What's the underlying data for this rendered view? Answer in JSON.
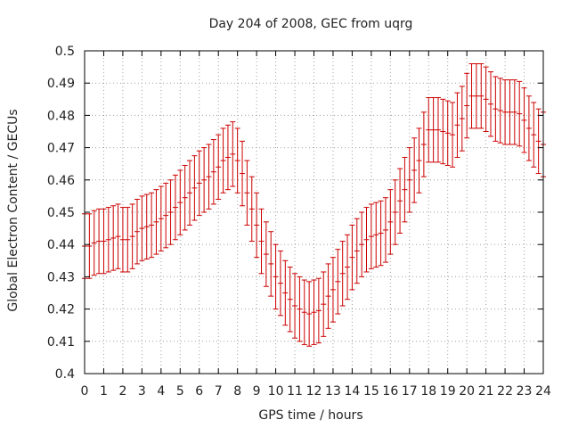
{
  "chart_data": {
    "type": "scatter",
    "title": "Day 204 of 2008, GEC from uqrg",
    "xlabel": "GPS time / hours",
    "ylabel": "Global Electron Content / GECUs",
    "xlim": [
      0,
      24
    ],
    "ylim": [
      0.4,
      0.5
    ],
    "grid": true,
    "error_bars": true,
    "series_color": "#cc0000",
    "grid_color": "#a0a0a0",
    "xticks": [
      "0",
      "1",
      "2",
      "3",
      "4",
      "5",
      "6",
      "7",
      "8",
      "9",
      "10",
      "11",
      "12",
      "13",
      "14",
      "15",
      "16",
      "17",
      "18",
      "19",
      "20",
      "21",
      "22",
      "23",
      "24"
    ],
    "yticks": [
      "0.4",
      "0.41",
      "0.42",
      "0.43",
      "0.44",
      "0.45",
      "0.46",
      "0.47",
      "0.48",
      "0.49",
      "0.5"
    ],
    "x": [
      0,
      0.25,
      0.5,
      0.75,
      1,
      1.25,
      1.5,
      1.75,
      2,
      2.25,
      2.5,
      2.75,
      3,
      3.25,
      3.5,
      3.75,
      4,
      4.25,
      4.5,
      4.75,
      5,
      5.25,
      5.5,
      5.75,
      6,
      6.25,
      6.5,
      6.75,
      7,
      7.25,
      7.5,
      7.75,
      8,
      8.25,
      8.5,
      8.75,
      9,
      9.25,
      9.5,
      9.75,
      10,
      10.25,
      10.5,
      10.75,
      11,
      11.25,
      11.5,
      11.75,
      12,
      12.25,
      12.5,
      12.75,
      13,
      13.25,
      13.5,
      13.75,
      14,
      14.25,
      14.5,
      14.75,
      15,
      15.25,
      15.5,
      15.75,
      16,
      16.25,
      16.5,
      16.75,
      17,
      17.25,
      17.5,
      17.75,
      18,
      18.25,
      18.5,
      18.75,
      19,
      19.25,
      19.5,
      19.75,
      20,
      20.25,
      20.5,
      20.75,
      21,
      21.25,
      21.5,
      21.75,
      22,
      22.25,
      22.5,
      22.75,
      23,
      23.25,
      23.5,
      23.75,
      24
    ],
    "y": [
      0.4395,
      0.4395,
      0.4405,
      0.441,
      0.441,
      0.4415,
      0.442,
      0.4425,
      0.4415,
      0.4415,
      0.4425,
      0.444,
      0.445,
      0.4455,
      0.446,
      0.447,
      0.448,
      0.449,
      0.45,
      0.4515,
      0.453,
      0.4545,
      0.456,
      0.4575,
      0.459,
      0.46,
      0.461,
      0.4625,
      0.464,
      0.466,
      0.467,
      0.468,
      0.466,
      0.462,
      0.456,
      0.451,
      0.446,
      0.441,
      0.437,
      0.434,
      0.43,
      0.428,
      0.425,
      0.423,
      0.421,
      0.42,
      0.419,
      0.4185,
      0.419,
      0.4195,
      0.4215,
      0.424,
      0.426,
      0.4285,
      0.431,
      0.433,
      0.436,
      0.438,
      0.44,
      0.4415,
      0.4425,
      0.443,
      0.4435,
      0.4445,
      0.447,
      0.45,
      0.4535,
      0.457,
      0.46,
      0.463,
      0.466,
      0.471,
      0.4755,
      0.4755,
      0.4755,
      0.475,
      0.4745,
      0.474,
      0.477,
      0.479,
      0.483,
      0.486,
      0.486,
      0.486,
      0.485,
      0.4835,
      0.482,
      0.4815,
      0.481,
      0.481,
      0.481,
      0.4805,
      0.4785,
      0.476,
      0.474,
      0.472,
      0.471
    ],
    "error": 0.01
  }
}
